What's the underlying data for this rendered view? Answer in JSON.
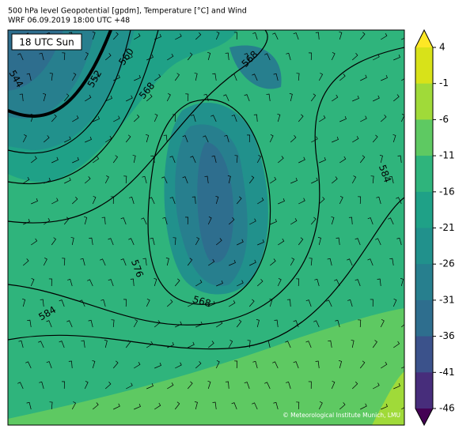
{
  "header": {
    "title": "500 hPa level Geopotential [gpdm], Temperature [°C] and Wind",
    "subtitle": "WRF 06.09.2019 18:00 UTC +48"
  },
  "map": {
    "time_label": "18 UTC Sun",
    "contour_labels": [
      544,
      552,
      560,
      568,
      568,
      584,
      576,
      568,
      584
    ],
    "credit": "© Meteorological Institute Munich, LMU"
  },
  "colorbar": {
    "ticks": [
      4,
      -1,
      -6,
      -11,
      -16,
      -21,
      -26,
      -31,
      -36,
      -41,
      -46
    ],
    "colors": [
      "#d8e219",
      "#a0da39",
      "#5ec962",
      "#2fb47c",
      "#1fa187",
      "#21918c",
      "#277f8e",
      "#2e6e8e",
      "#3b528b",
      "#472d7b"
    ],
    "over_color": "#fde725",
    "under_color": "#440154"
  }
}
